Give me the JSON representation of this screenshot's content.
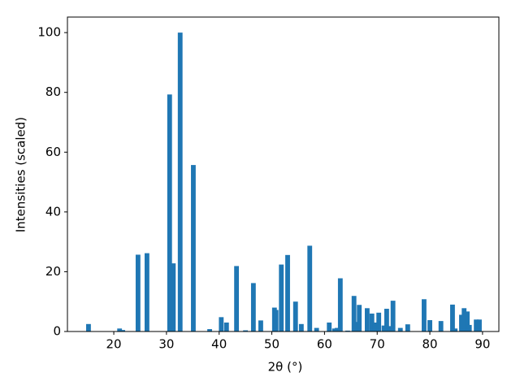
{
  "chart_data": {
    "type": "bar",
    "x_label": "2θ (°)",
    "y_label": "Intensities (scaled)",
    "x": [
      15.2,
      21.1,
      21.7,
      24.6,
      26.3,
      30.6,
      31.3,
      32.6,
      35.1,
      38.2,
      40.4,
      41.4,
      43.3,
      45.0,
      46.5,
      47.9,
      50.5,
      50.8,
      51.8,
      53.0,
      54.5,
      55.6,
      57.2,
      58.5,
      60.9,
      61.9,
      62.4,
      63.0,
      64.4,
      65.6,
      66.3,
      66.6,
      68.1,
      69.0,
      69.6,
      70.3,
      71.3,
      71.8,
      72.4,
      73.0,
      74.4,
      75.8,
      78.9,
      80.0,
      82.1,
      84.3,
      84.8,
      86.0,
      86.5,
      87.1,
      87.5,
      88.8,
      89.4
    ],
    "values": [
      2.5,
      1.0,
      0.5,
      25.7,
      26.2,
      79.3,
      22.8,
      100,
      55.7,
      0.8,
      4.8,
      3.0,
      21.9,
      0.4,
      16.2,
      3.7,
      8.0,
      7.2,
      22.4,
      25.6,
      10.0,
      2.5,
      28.7,
      1.2,
      3.0,
      1.0,
      1.2,
      17.8,
      0.3,
      11.9,
      3.2,
      8.9,
      7.8,
      6.0,
      3.0,
      6.3,
      2.0,
      7.6,
      1.8,
      10.3,
      1.2,
      2.4,
      10.8,
      3.8,
      3.5,
      9.0,
      1.0,
      5.6,
      7.8,
      6.7,
      2.2,
      4.0,
      4.0
    ],
    "color": "#1f77b4",
    "xlim": [
      11.2,
      93.1
    ],
    "ylim": [
      0,
      105.2
    ],
    "xticks": [
      20,
      30,
      40,
      50,
      60,
      70,
      80,
      90
    ],
    "yticks": [
      0,
      20,
      40,
      60,
      80,
      100
    ],
    "grid": false
  }
}
